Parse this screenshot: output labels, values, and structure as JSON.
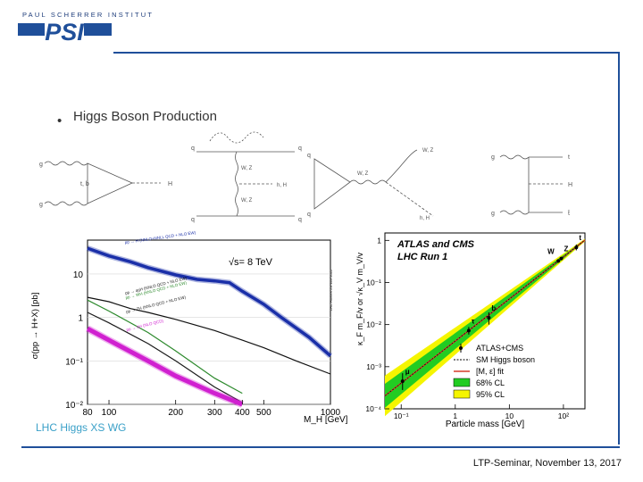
{
  "logo": {
    "org_text": "PAUL SCHERRER INSTITUT",
    "mark_text": "PSI",
    "brand_color": "#1f4f9a"
  },
  "slide": {
    "bullet": "•",
    "title": "Higgs Boson Production",
    "footer": "LTP-Seminar, November 13, 2017"
  },
  "diagrams": [
    {
      "name": "gluon-fusion",
      "labels": [
        "g",
        "g",
        "t, b",
        "H"
      ]
    },
    {
      "name": "vector-boson-fusion",
      "labels": [
        "q",
        "q",
        "W, Z",
        "W, Z",
        "q",
        "q",
        "h, H"
      ]
    },
    {
      "name": "higgs-strahlung",
      "labels": [
        "q",
        "q",
        "W, Z",
        "W, Z",
        "h, H"
      ]
    },
    {
      "name": "ttH",
      "labels": [
        "g",
        "g",
        "t",
        "H",
        "t̄"
      ]
    }
  ],
  "chart_data": [
    {
      "type": "line",
      "energy_label": "√s= 8 TeV",
      "ylabel": "σ(pp → H+X) [pb]",
      "xlabel": "M_H [GeV]",
      "source_label": "LHC Higgs XS WG",
      "side_label": "LHC HIGGS XS WG 2012",
      "xscale": "log",
      "yscale": "log",
      "xlim": [
        80,
        1000
      ],
      "ylim": [
        0.01,
        60
      ],
      "x_ticks": [
        "80",
        "100",
        "200",
        "300",
        "400",
        "500",
        "1000"
      ],
      "y_ticks": [
        "10",
        "1",
        "10⁻¹",
        "10⁻²"
      ],
      "series": [
        {
          "name": "pp → H (NNLO+NNLL QCD + NLO EW)",
          "color": "#1a2fa8",
          "width": 3.5,
          "points": [
            [
              80,
              39
            ],
            [
              100,
              26
            ],
            [
              125,
              19
            ],
            [
              150,
              14
            ],
            [
              200,
              9.5
            ],
            [
              250,
              7.5
            ],
            [
              300,
              6.9
            ],
            [
              350,
              6.3
            ],
            [
              400,
              4.0
            ],
            [
              500,
              2.0
            ],
            [
              600,
              1.0
            ],
            [
              800,
              0.35
            ],
            [
              1000,
              0.13
            ]
          ]
        },
        {
          "name": "pp → qqH (NNLO QCD + NLO EW)",
          "color": "#111111",
          "width": 1.2,
          "points": [
            [
              80,
              2.9
            ],
            [
              100,
              2.3
            ],
            [
              125,
              1.6
            ],
            [
              150,
              1.3
            ],
            [
              200,
              0.9
            ],
            [
              300,
              0.5
            ],
            [
              400,
              0.3
            ],
            [
              500,
              0.2
            ],
            [
              700,
              0.1
            ],
            [
              1000,
              0.05
            ]
          ]
        },
        {
          "name": "pp → WH (NNLO QCD + NLO EW)",
          "color": "#2d8a2d",
          "width": 1.2,
          "points": [
            [
              80,
              2.5
            ],
            [
              100,
              1.4
            ],
            [
              150,
              0.45
            ],
            [
              200,
              0.17
            ],
            [
              300,
              0.04
            ],
            [
              400,
              0.018
            ]
          ]
        },
        {
          "name": "pp → ZH (NNLO QCD + NLO EW)",
          "color": "#1a1a1a",
          "width": 1.2,
          "points": [
            [
              80,
              1.3
            ],
            [
              100,
              0.75
            ],
            [
              150,
              0.25
            ],
            [
              200,
              0.1
            ],
            [
              300,
              0.025
            ],
            [
              400,
              0.011
            ]
          ]
        },
        {
          "name": "pp → ttH (NLO QCD)",
          "color": "#d020d0",
          "width": 5,
          "points": [
            [
              80,
              0.55
            ],
            [
              100,
              0.3
            ],
            [
              150,
              0.1
            ],
            [
              200,
              0.045
            ],
            [
              300,
              0.018
            ],
            [
              400,
              0.01
            ]
          ]
        }
      ]
    },
    {
      "type": "scatter",
      "title_lines": [
        "ATLAS and CMS",
        "LHC Run 1"
      ],
      "ylabel": "κ_F m_F/v or √κ_V m_V/v",
      "xlabel": "Particle mass [GeV]",
      "xscale": "log",
      "yscale": "log",
      "xlim": [
        0.05,
        250
      ],
      "ylim": [
        0.0001,
        1.5
      ],
      "x_ticks": [
        "10⁻¹",
        "1",
        "10",
        "10²"
      ],
      "y_ticks": [
        "1",
        "10⁻¹",
        "10⁻²",
        "10⁻³",
        "10⁻⁴"
      ],
      "legend_position": "bottom-right",
      "legend": [
        "ATLAS+CMS",
        "SM Higgs boson",
        "[M, ε] fit",
        "68% CL",
        "95% CL"
      ],
      "fit_band": {
        "line_color": "#d63a2a",
        "cl68_color": "#22cc22",
        "cl95_color": "#f5f500"
      },
      "points": [
        {
          "label": "μ",
          "mass": 0.106,
          "value": 0.00045,
          "err_low": 0.00028,
          "err_high": 0.0007
        },
        {
          "label": "τ",
          "mass": 1.777,
          "value": 0.0072,
          "err_low": 0.0058,
          "err_high": 0.0088
        },
        {
          "label": "b",
          "mass": 4.18,
          "value": 0.0145,
          "err_low": 0.01,
          "err_high": 0.0195
        },
        {
          "label": "W",
          "mass": 80.4,
          "value": 0.325,
          "err_low": 0.3,
          "err_high": 0.35
        },
        {
          "label": "Z",
          "mass": 91.2,
          "value": 0.37,
          "err_low": 0.345,
          "err_high": 0.395
        },
        {
          "label": "t",
          "mass": 173,
          "value": 0.68,
          "err_low": 0.58,
          "err_high": 0.8
        }
      ]
    }
  ]
}
